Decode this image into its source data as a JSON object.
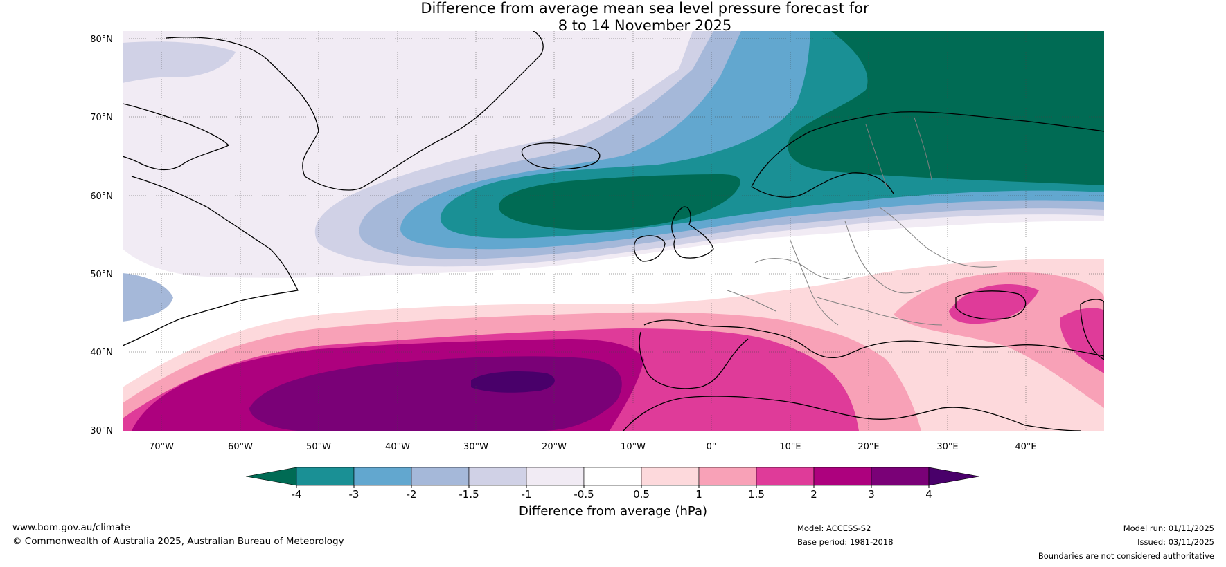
{
  "title": {
    "line1": "Difference from average mean sea level pressure forecast for",
    "line2": "8 to 14 November 2025"
  },
  "map": {
    "lat_labels": [
      "80°N",
      "70°N",
      "60°N",
      "50°N",
      "40°N",
      "30°N"
    ],
    "lon_labels": [
      "70°W",
      "60°W",
      "50°W",
      "40°W",
      "30°W",
      "20°W",
      "10°W",
      "0°",
      "10°E",
      "20°E",
      "30°E",
      "40°E"
    ],
    "lat_range": [
      30,
      80
    ],
    "lon_range": [
      -75,
      50
    ]
  },
  "colorbar": {
    "title": "Difference from average (hPa)",
    "ticks": [
      "-4",
      "-3",
      "-2",
      "-1.5",
      "-1",
      "-0.5",
      "0.5",
      "1",
      "1.5",
      "2",
      "3",
      "4"
    ],
    "colors": [
      "#006b54",
      "#1a9095",
      "#62a7cf",
      "#a5b8d9",
      "#d0d1e6",
      "#f1ebf4",
      "#ffffff",
      "#fdd9dc",
      "#f8a1b7",
      "#df3b99",
      "#ad017e",
      "#7a0177",
      "#49006a"
    ]
  },
  "footer": {
    "url": "www.bom.gov.au/climate",
    "copyright": "© Commonwealth of Australia 2025, Australian Bureau of Meteorology",
    "model": "Model: ACCESS-S2",
    "base_period": "Base period: 1981-2018",
    "model_run": "Model run: 01/11/2025",
    "issued": "Issued: 03/11/2025",
    "disclaimer": "Boundaries are not considered authoritative"
  }
}
